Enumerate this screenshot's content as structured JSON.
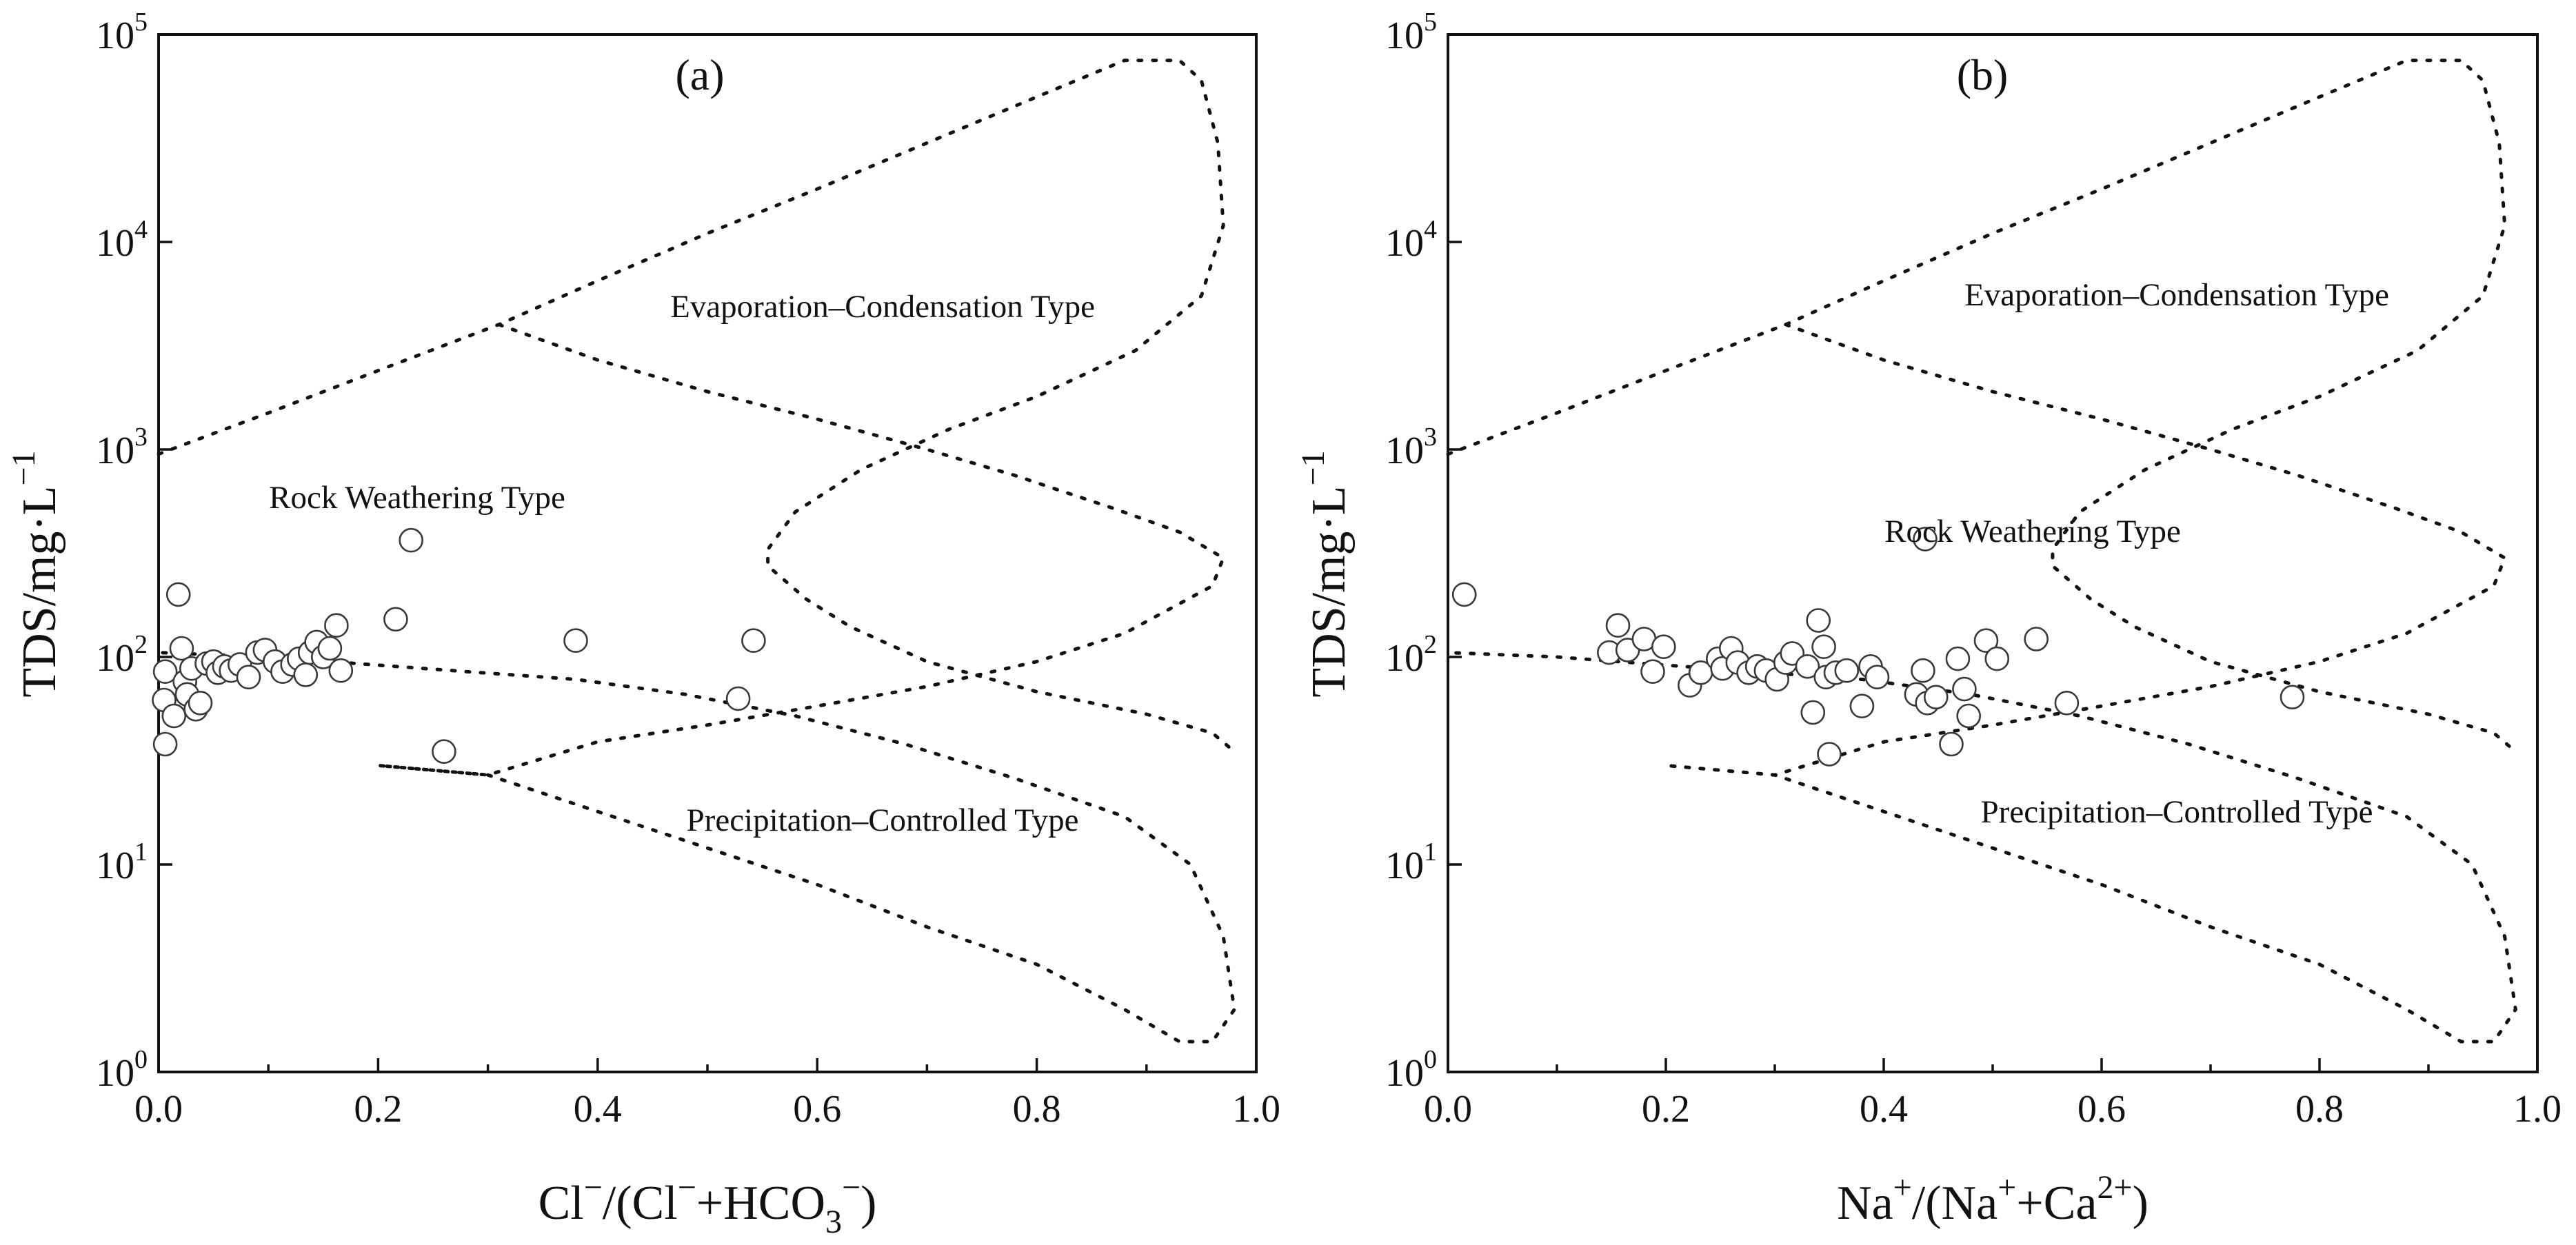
{
  "colors": {
    "axis": "#111111",
    "marker_edge": "#3a3a3a",
    "background": "#ffffff"
  },
  "chart_data": [
    {
      "type": "scatter",
      "panel": "(a)",
      "title": "(a)",
      "xlabel": {
        "text": "Cl⁻/(Cl⁻+HCO₃⁻)",
        "parts": [
          "Cl",
          "−",
          "/(Cl",
          "−",
          "+HCO",
          "3",
          "−",
          ")"
        ]
      },
      "ylabel": {
        "text": "TDS/mg·L⁻¹",
        "parts": [
          "TDS/mg·L",
          "−1"
        ]
      },
      "xlim": [
        0,
        1
      ],
      "ylim": [
        1,
        100000
      ],
      "yscale": "log",
      "xticks": [
        0,
        0.2,
        0.4,
        0.6,
        0.8,
        1.0
      ],
      "xtick_labels": [
        "0.0",
        "0.2",
        "0.4",
        "0.6",
        "0.8",
        "1.0"
      ],
      "yticks": [
        1,
        10,
        100,
        1000,
        10000,
        100000
      ],
      "ytick_labels": [
        {
          "base": "10",
          "exp": "0"
        },
        {
          "base": "10",
          "exp": "1"
        },
        {
          "base": "10",
          "exp": "2"
        },
        {
          "base": "10",
          "exp": "3"
        },
        {
          "base": "10",
          "exp": "4"
        },
        {
          "base": "10",
          "exp": "5"
        }
      ],
      "grid": false,
      "annotations": [
        "Evaporation–Condensation Type",
        "Rock Weathering Type",
        "Precipitation–Controlled Type"
      ],
      "boomerang_envelope": {
        "upper_outer": [
          [
            0.0,
            950
          ],
          [
            0.1,
            1500
          ],
          [
            0.2,
            2400
          ],
          [
            0.31,
            4000
          ],
          [
            0.4,
            6500
          ],
          [
            0.5,
            11000
          ],
          [
            0.6,
            18000
          ],
          [
            0.7,
            30000
          ],
          [
            0.8,
            50000
          ],
          [
            0.88,
            75000
          ],
          [
            0.93,
            75000
          ],
          [
            0.95,
            60000
          ],
          [
            0.965,
            30000
          ],
          [
            0.97,
            12000
          ],
          [
            0.95,
            5500
          ],
          [
            0.89,
            3000
          ],
          [
            0.8,
            1800
          ],
          [
            0.72,
            1250
          ],
          [
            0.64,
            800
          ],
          [
            0.58,
            500
          ],
          [
            0.555,
            330
          ],
          [
            0.555,
            275
          ],
          [
            0.59,
            190
          ],
          [
            0.63,
            140
          ],
          [
            0.7,
            95
          ],
          [
            0.8,
            68
          ],
          [
            0.9,
            53
          ],
          [
            0.96,
            43
          ],
          [
            0.98,
            35
          ]
        ],
        "inner_lower": [
          [
            0.31,
            4000
          ],
          [
            0.4,
            2700
          ],
          [
            0.5,
            1900
          ],
          [
            0.6,
            1400
          ],
          [
            0.7,
            1000
          ],
          [
            0.78,
            750
          ],
          [
            0.87,
            520
          ],
          [
            0.93,
            400
          ],
          [
            0.97,
            300
          ],
          [
            0.96,
            220
          ],
          [
            0.88,
            130
          ],
          [
            0.8,
            95
          ],
          [
            0.7,
            72
          ],
          [
            0.6,
            58
          ],
          [
            0.5,
            47
          ],
          [
            0.4,
            39
          ],
          [
            0.3,
            27
          ],
          [
            0.2,
            30
          ],
          [
            0.3,
            27
          ],
          [
            0.4,
            18
          ],
          [
            0.5,
            12
          ],
          [
            0.6,
            8
          ],
          [
            0.7,
            5
          ],
          [
            0.8,
            3.3
          ],
          [
            0.88,
            2.0
          ],
          [
            0.93,
            1.4
          ],
          [
            0.96,
            1.4
          ],
          [
            0.98,
            2.0
          ],
          [
            0.97,
            4.5
          ],
          [
            0.94,
            10
          ],
          [
            0.88,
            17
          ],
          [
            0.78,
            26
          ],
          [
            0.68,
            38
          ],
          [
            0.58,
            52
          ],
          [
            0.48,
            66
          ],
          [
            0.38,
            78
          ],
          [
            0.28,
            85
          ],
          [
            0.18,
            93
          ],
          [
            0.1,
            100
          ],
          [
            0.0,
            105
          ]
        ]
      },
      "series": [
        {
          "name": "Samples",
          "marker": "open-circle",
          "points": [
            [
              0.006,
              38
            ],
            [
              0.005,
              62
            ],
            [
              0.006,
              85
            ],
            [
              0.014,
              52
            ],
            [
              0.018,
              200
            ],
            [
              0.021,
              110
            ],
            [
              0.024,
              76
            ],
            [
              0.026,
              66
            ],
            [
              0.03,
              88
            ],
            [
              0.034,
              56
            ],
            [
              0.038,
              60
            ],
            [
              0.044,
              93
            ],
            [
              0.05,
              95
            ],
            [
              0.054,
              84
            ],
            [
              0.06,
              90
            ],
            [
              0.066,
              86
            ],
            [
              0.074,
              92
            ],
            [
              0.082,
              80
            ],
            [
              0.09,
              105
            ],
            [
              0.097,
              108
            ],
            [
              0.106,
              95
            ],
            [
              0.113,
              85
            ],
            [
              0.122,
              92
            ],
            [
              0.128,
              98
            ],
            [
              0.134,
              82
            ],
            [
              0.138,
              105
            ],
            [
              0.144,
              118
            ],
            [
              0.15,
              100
            ],
            [
              0.156,
              110
            ],
            [
              0.162,
              142
            ],
            [
              0.166,
              86
            ],
            [
              0.216,
              152
            ],
            [
              0.23,
              365
            ],
            [
              0.26,
              35
            ],
            [
              0.38,
              120
            ],
            [
              0.528,
              63
            ],
            [
              0.542,
              120
            ]
          ]
        }
      ]
    },
    {
      "type": "scatter",
      "panel": "(b)",
      "title": "(b)",
      "xlabel": {
        "text": "Na⁺/(Na⁺+Ca²⁺)",
        "parts": [
          "Na",
          "+",
          "/(Na",
          "+",
          "+Ca",
          "2+",
          ")"
        ]
      },
      "ylabel": {
        "text": "TDS/mg·L⁻¹",
        "parts": [
          "TDS/mg·L",
          "−1"
        ]
      },
      "xlim": [
        0,
        1
      ],
      "ylim": [
        1,
        100000
      ],
      "yscale": "log",
      "xticks": [
        0,
        0.2,
        0.4,
        0.6,
        0.8,
        1.0
      ],
      "xtick_labels": [
        "0.0",
        "0.2",
        "0.4",
        "0.6",
        "0.8",
        "1.0"
      ],
      "yticks": [
        1,
        10,
        100,
        1000,
        10000,
        100000
      ],
      "ytick_labels": [
        {
          "base": "10",
          "exp": "0"
        },
        {
          "base": "10",
          "exp": "1"
        },
        {
          "base": "10",
          "exp": "2"
        },
        {
          "base": "10",
          "exp": "3"
        },
        {
          "base": "10",
          "exp": "4"
        },
        {
          "base": "10",
          "exp": "5"
        }
      ],
      "grid": false,
      "annotations": [
        "Evaporation–Condensation Type",
        "Rock Weathering Type",
        "Precipitation–Controlled Type"
      ],
      "boomerang_envelope": {
        "upper_outer": [
          [
            0.0,
            950
          ],
          [
            0.1,
            1500
          ],
          [
            0.2,
            2400
          ],
          [
            0.31,
            4000
          ],
          [
            0.4,
            6500
          ],
          [
            0.5,
            11000
          ],
          [
            0.6,
            18000
          ],
          [
            0.7,
            30000
          ],
          [
            0.8,
            50000
          ],
          [
            0.88,
            75000
          ],
          [
            0.93,
            75000
          ],
          [
            0.95,
            60000
          ],
          [
            0.965,
            30000
          ],
          [
            0.97,
            12000
          ],
          [
            0.95,
            5500
          ],
          [
            0.89,
            3000
          ],
          [
            0.8,
            1800
          ],
          [
            0.72,
            1250
          ],
          [
            0.64,
            800
          ],
          [
            0.58,
            500
          ],
          [
            0.555,
            330
          ],
          [
            0.555,
            275
          ],
          [
            0.59,
            190
          ],
          [
            0.63,
            140
          ],
          [
            0.7,
            95
          ],
          [
            0.8,
            68
          ],
          [
            0.9,
            53
          ],
          [
            0.96,
            43
          ],
          [
            0.98,
            35
          ]
        ],
        "inner_lower": [
          [
            0.31,
            4000
          ],
          [
            0.4,
            2700
          ],
          [
            0.5,
            1900
          ],
          [
            0.6,
            1400
          ],
          [
            0.7,
            1000
          ],
          [
            0.78,
            750
          ],
          [
            0.87,
            520
          ],
          [
            0.93,
            400
          ],
          [
            0.97,
            300
          ],
          [
            0.96,
            220
          ],
          [
            0.88,
            130
          ],
          [
            0.8,
            95
          ],
          [
            0.7,
            72
          ],
          [
            0.6,
            58
          ],
          [
            0.5,
            47
          ],
          [
            0.4,
            39
          ],
          [
            0.3,
            27
          ],
          [
            0.2,
            30
          ],
          [
            0.3,
            27
          ],
          [
            0.4,
            18
          ],
          [
            0.5,
            12
          ],
          [
            0.6,
            8
          ],
          [
            0.7,
            5
          ],
          [
            0.8,
            3.3
          ],
          [
            0.88,
            2.0
          ],
          [
            0.93,
            1.4
          ],
          [
            0.96,
            1.4
          ],
          [
            0.98,
            2.0
          ],
          [
            0.97,
            4.5
          ],
          [
            0.94,
            10
          ],
          [
            0.88,
            17
          ],
          [
            0.78,
            26
          ],
          [
            0.68,
            38
          ],
          [
            0.58,
            52
          ],
          [
            0.48,
            66
          ],
          [
            0.38,
            78
          ],
          [
            0.28,
            85
          ],
          [
            0.18,
            93
          ],
          [
            0.1,
            100
          ],
          [
            0.0,
            105
          ]
        ]
      },
      "series": [
        {
          "name": "Samples",
          "marker": "open-circle",
          "points": [
            [
              0.015,
              200
            ],
            [
              0.148,
              105
            ],
            [
              0.156,
              142
            ],
            [
              0.165,
              108
            ],
            [
              0.18,
              122
            ],
            [
              0.188,
              85
            ],
            [
              0.198,
              112
            ],
            [
              0.222,
              73
            ],
            [
              0.232,
              84
            ],
            [
              0.248,
              98
            ],
            [
              0.252,
              88
            ],
            [
              0.26,
              110
            ],
            [
              0.266,
              94
            ],
            [
              0.276,
              84
            ],
            [
              0.284,
              90
            ],
            [
              0.292,
              86
            ],
            [
              0.302,
              78
            ],
            [
              0.31,
              94
            ],
            [
              0.316,
              104
            ],
            [
              0.33,
              90
            ],
            [
              0.335,
              54
            ],
            [
              0.34,
              150
            ],
            [
              0.345,
              112
            ],
            [
              0.347,
              80
            ],
            [
              0.35,
              34
            ],
            [
              0.356,
              84
            ],
            [
              0.366,
              86
            ],
            [
              0.38,
              58
            ],
            [
              0.388,
              90
            ],
            [
              0.394,
              80
            ],
            [
              0.438,
              370
            ],
            [
              0.43,
              66
            ],
            [
              0.436,
              86
            ],
            [
              0.44,
              60
            ],
            [
              0.448,
              64
            ],
            [
              0.462,
              38
            ],
            [
              0.468,
              98
            ],
            [
              0.474,
              70
            ],
            [
              0.478,
              52
            ],
            [
              0.494,
              120
            ],
            [
              0.504,
              98
            ],
            [
              0.54,
              122
            ],
            [
              0.568,
              60
            ],
            [
              0.775,
              64
            ]
          ]
        }
      ]
    }
  ]
}
